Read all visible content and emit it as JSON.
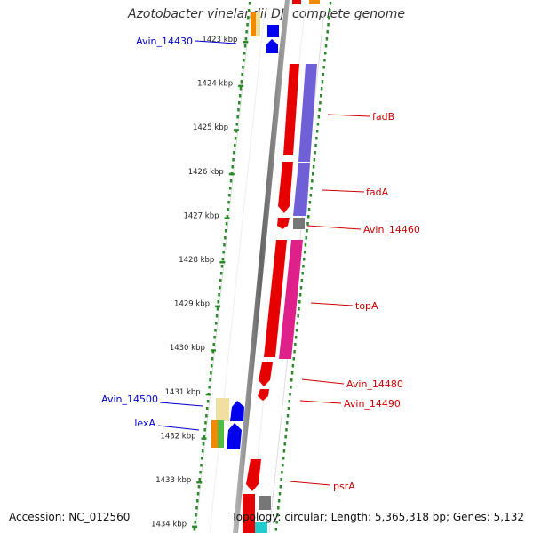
{
  "title": "Azotobacter vinelandii DJ, complete genome",
  "accession": "Accession: NC_012560",
  "summary": "Topology: circular; Length: 5,365,318 bp; Genes: 5,132",
  "ruler": {
    "labels": [
      "1423 kbp",
      "1424 kbp",
      "1425 kbp",
      "1426 kbp",
      "1427 kbp",
      "1428 kbp",
      "1429 kbp",
      "1430 kbp",
      "1431 kbp",
      "1432 kbp",
      "1433 kbp",
      "1434 kbp"
    ]
  },
  "genes_right": [
    {
      "name": "fadB",
      "color": "#cc0000"
    },
    {
      "name": "fadA",
      "color": "#cc0000"
    },
    {
      "name": "Avin_14460",
      "color": "#cc0000"
    },
    {
      "name": "topA",
      "color": "#cc0000"
    },
    {
      "name": "Avin_14480",
      "color": "#cc0000"
    },
    {
      "name": "Avin_14490",
      "color": "#cc0000"
    },
    {
      "name": "psrA",
      "color": "#cc0000"
    }
  ],
  "genes_left": [
    {
      "name": "Avin_14430",
      "color": "#0000cc"
    },
    {
      "name": "Avin_14500",
      "color": "#0000cc"
    },
    {
      "name": "lexA",
      "color": "#0000cc"
    }
  ],
  "colors": {
    "ruler_tick": "#2a8a2a",
    "backbone": "#888888",
    "red_gene": "#e60000",
    "blue_gene": "#0000ee",
    "purple_cog": "#7060d8",
    "pink_cog": "#e0208a",
    "gray_cog": "#777777",
    "orange_cog": "#f08a00",
    "yellow_cog": "#f0e0a0",
    "green_cog": "#55bb44",
    "cyan_cog": "#22cccc"
  }
}
